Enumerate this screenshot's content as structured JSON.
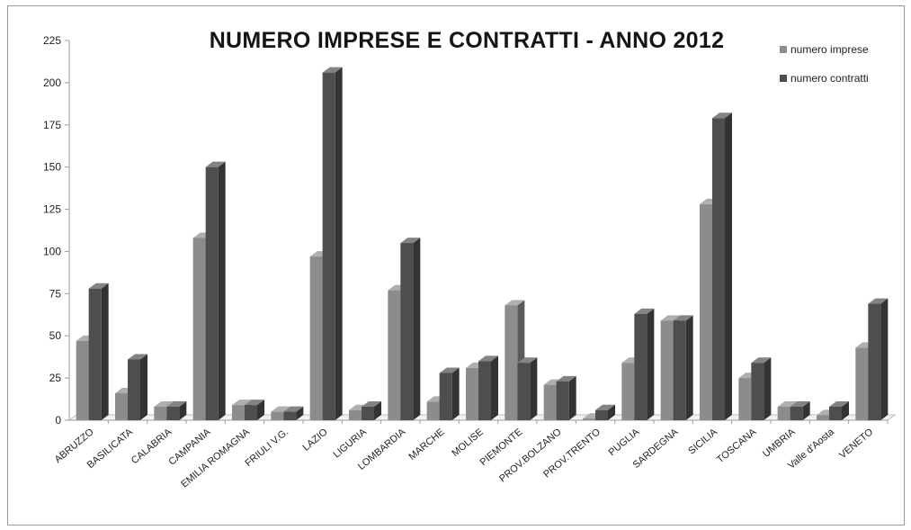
{
  "chart_data": {
    "type": "bar",
    "title": "NUMERO IMPRESE E CONTRATTI - ANNO 2012",
    "xlabel": "",
    "ylabel": "",
    "ylim": [
      0,
      225
    ],
    "yticks": [
      0,
      25,
      50,
      75,
      100,
      125,
      150,
      175,
      200,
      225
    ],
    "grid": false,
    "legend_position": "top-right",
    "categories": [
      "ABRUZZO",
      "BASILICATA",
      "CALABRIA",
      "CAMPANIA",
      "EMILIA ROMAGNA",
      "FRIULI V.G.",
      "LAZIO",
      "LIGURIA",
      "LOMBARDIA",
      "MARCHE",
      "MOLISE",
      "PIEMONTE",
      "PROV.BOLZANO",
      "PROV.TRENTO",
      "PUGLIA",
      "SARDEGNA",
      "SICILIA",
      "TOSCANA",
      "UMBRIA",
      "Valle d'Aosta",
      "VENETO"
    ],
    "series": [
      {
        "name": "numero imprese",
        "color": "#8c8c8c",
        "values": [
          47,
          16,
          8,
          108,
          9,
          5,
          97,
          6,
          77,
          11,
          31,
          68,
          21,
          1,
          34,
          59,
          128,
          25,
          8,
          3,
          43
        ]
      },
      {
        "name": "numero contratti",
        "color": "#4e4e4e",
        "values": [
          78,
          36,
          8,
          150,
          9,
          5,
          206,
          8,
          105,
          28,
          35,
          34,
          23,
          6,
          63,
          59,
          179,
          34,
          8,
          8,
          69
        ]
      }
    ]
  }
}
